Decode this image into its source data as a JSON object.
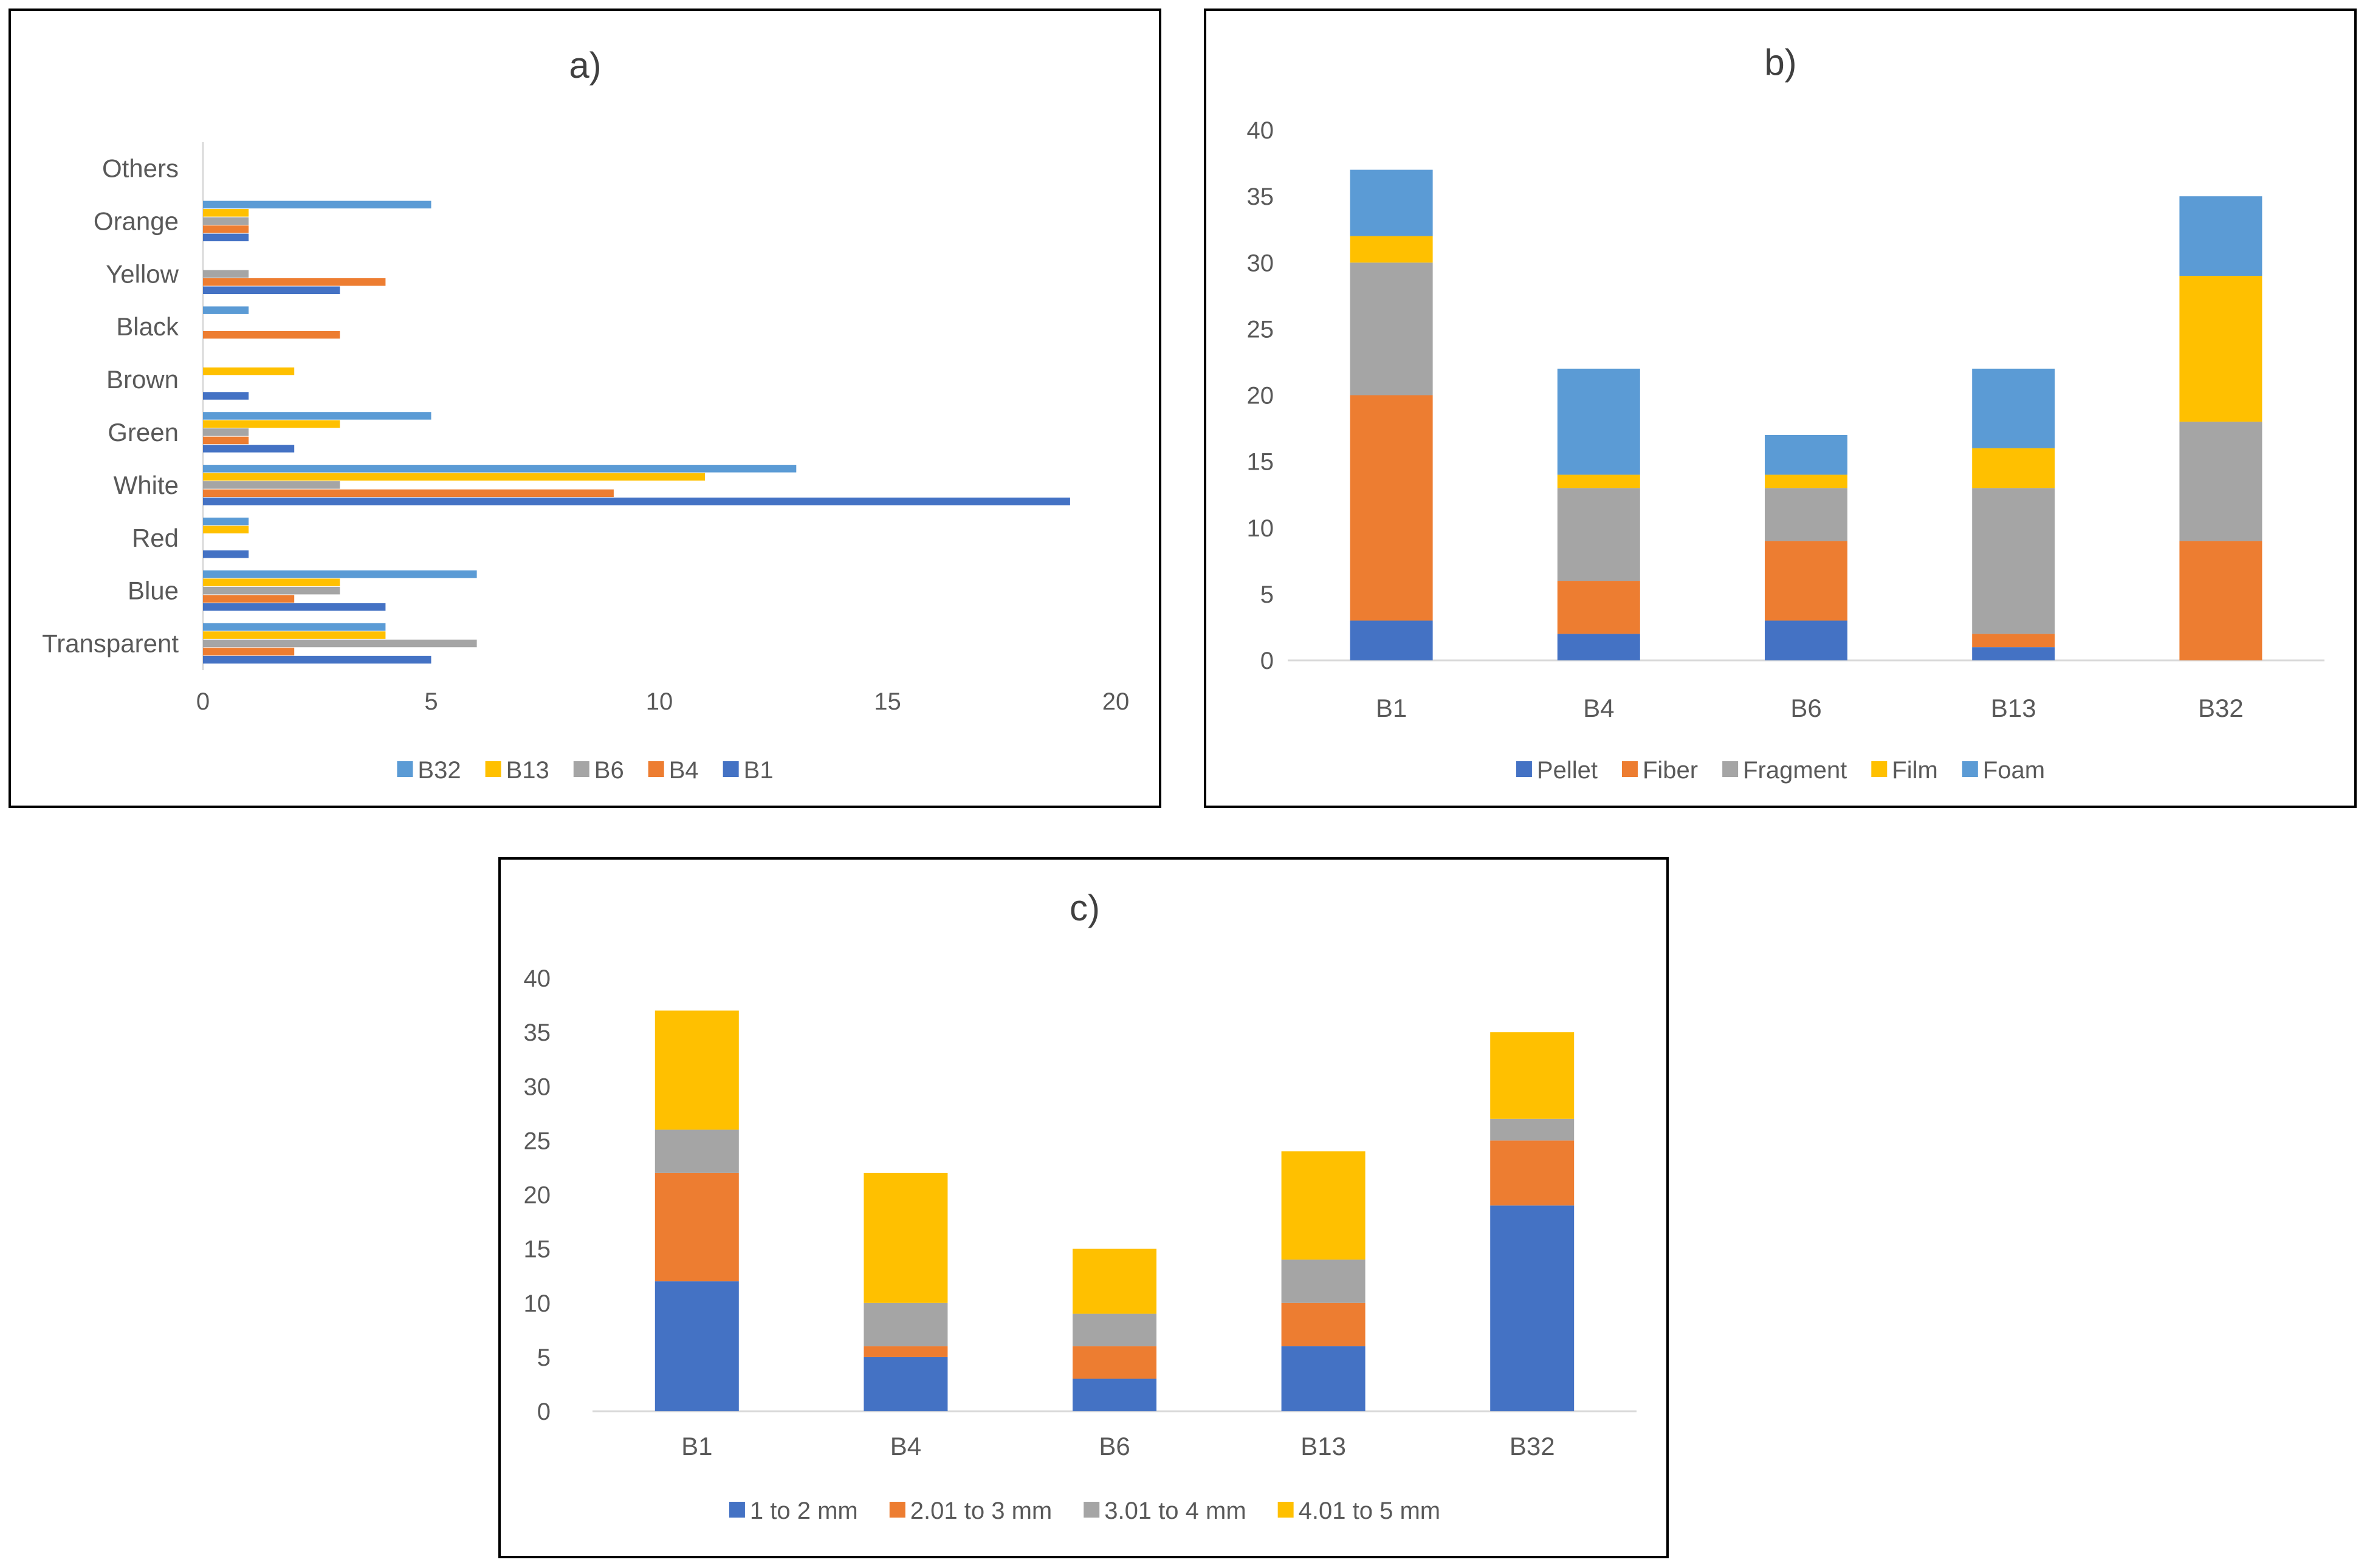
{
  "chart_data": [
    {
      "id": "a",
      "type": "bar",
      "orientation": "horizontal",
      "title": "a)",
      "xlabel": "",
      "ylabel": "",
      "xlim": [
        0,
        20
      ],
      "xticks": [
        0,
        5,
        10,
        15,
        20
      ],
      "categories": [
        "Transparent",
        "Blue",
        "Red",
        "White",
        "Green",
        "Brown",
        "Black",
        "Yellow",
        "Orange",
        "Others"
      ],
      "series": [
        {
          "name": "B1",
          "color": "#4472c4",
          "values": [
            5,
            4,
            1,
            19,
            2,
            1,
            0,
            3,
            1,
            0
          ]
        },
        {
          "name": "B4",
          "color": "#ed7d31",
          "values": [
            2,
            2,
            0,
            9,
            1,
            0,
            3,
            4,
            1,
            0
          ]
        },
        {
          "name": "B6",
          "color": "#a5a5a5",
          "values": [
            6,
            3,
            0,
            3,
            1,
            0,
            0,
            1,
            1,
            0
          ]
        },
        {
          "name": "B13",
          "color": "#ffc000",
          "values": [
            4,
            3,
            1,
            11,
            3,
            2,
            0,
            0,
            1,
            0
          ]
        },
        {
          "name": "B32",
          "color": "#5b9bd5",
          "values": [
            4,
            6,
            1,
            13,
            5,
            0,
            1,
            0,
            5,
            0
          ]
        }
      ],
      "legend_order": [
        "B32",
        "B13",
        "B6",
        "B4",
        "B1"
      ],
      "legend": "bottom"
    },
    {
      "id": "b",
      "type": "bar",
      "stacked": true,
      "title": "b)",
      "xlabel": "",
      "ylabel": "",
      "ylim": [
        0,
        40
      ],
      "yticks": [
        0,
        5,
        10,
        15,
        20,
        25,
        30,
        35,
        40
      ],
      "categories": [
        "B1",
        "B4",
        "B6",
        "B13",
        "B32"
      ],
      "series": [
        {
          "name": "Pellet",
          "color": "#4472c4",
          "values": [
            3,
            2,
            3,
            1,
            0
          ]
        },
        {
          "name": "Fiber",
          "color": "#ed7d31",
          "values": [
            17,
            4,
            6,
            1,
            9
          ]
        },
        {
          "name": "Fragment",
          "color": "#a5a5a5",
          "values": [
            10,
            7,
            4,
            11,
            9
          ]
        },
        {
          "name": "Film",
          "color": "#ffc000",
          "values": [
            2,
            1,
            1,
            3,
            11
          ]
        },
        {
          "name": "Foam",
          "color": "#5b9bd5",
          "values": [
            5,
            8,
            3,
            6,
            6
          ]
        }
      ],
      "legend_order": [
        "Pellet",
        "Fiber",
        "Fragment",
        "Film",
        "Foam"
      ],
      "legend": "bottom"
    },
    {
      "id": "c",
      "type": "bar",
      "stacked": true,
      "title": "c)",
      "xlabel": "",
      "ylabel": "",
      "ylim": [
        0,
        40
      ],
      "yticks": [
        0,
        5,
        10,
        15,
        20,
        25,
        30,
        35,
        40
      ],
      "categories": [
        "B1",
        "B4",
        "B6",
        "B13",
        "B32"
      ],
      "series": [
        {
          "name": "1 to 2 mm",
          "color": "#4472c4",
          "values": [
            12,
            5,
            3,
            6,
            19
          ]
        },
        {
          "name": "2.01 to 3 mm",
          "color": "#ed7d31",
          "values": [
            10,
            1,
            3,
            4,
            6
          ]
        },
        {
          "name": "3.01 to 4 mm",
          "color": "#a5a5a5",
          "values": [
            4,
            4,
            3,
            4,
            2
          ]
        },
        {
          "name": "4.01 to 5 mm",
          "color": "#ffc000",
          "values": [
            11,
            12,
            6,
            10,
            8
          ]
        }
      ],
      "legend_order": [
        "1 to 2 mm",
        "2.01 to 3 mm",
        "3.01 to 4 mm",
        "4.01 to 5 mm"
      ],
      "legend": "bottom"
    }
  ]
}
